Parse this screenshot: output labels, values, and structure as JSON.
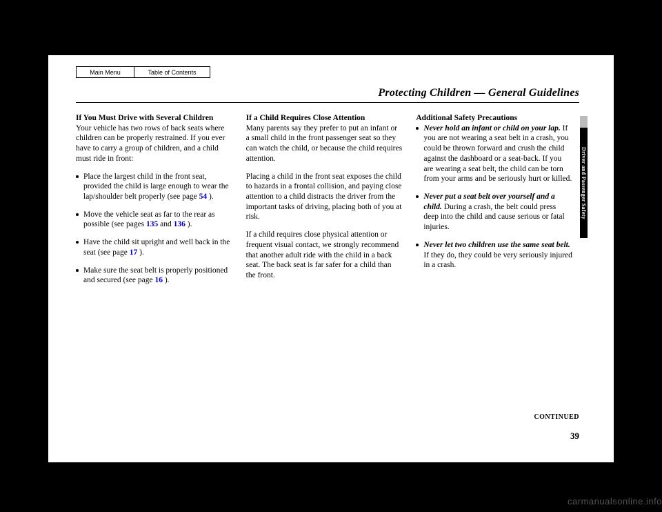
{
  "nav": {
    "main_menu": "Main Menu",
    "toc": "Table of Contents"
  },
  "heading": "Protecting Children — General Guidelines",
  "side_tab": "Driver and Passenger Safety",
  "col1": {
    "h1": "If You Must Drive with Several Children",
    "p1": "Your vehicle has two rows of back seats where children can be properly restrained. If you ever have to carry a group of children, and a child must ride in front:",
    "b1a": "Place the largest child in the front seat, provided the child is large enough to wear the lap/shoulder belt properly (see page ",
    "b1_link": "54",
    "b1b": " ).",
    "b2a": "Move the vehicle seat as far to the rear as possible (see pages ",
    "b2_link1": "135",
    "b2_mid": " and ",
    "b2_link2": "136",
    "b2b": " ).",
    "b3a": "Have the child sit upright and well back in the seat (see page ",
    "b3_link": "17",
    "b3b": " ).",
    "b4a": "Make sure the seat belt is properly positioned and secured (see page ",
    "b4_link": "16",
    "b4b": " )."
  },
  "col2": {
    "h1": "If a Child Requires Close Attention",
    "p1": "Many parents say they prefer to put an infant or a small child in the front passenger seat so they can watch the child, or because the child requires attention.",
    "p2": "Placing a child in the front seat exposes the child to hazards in a frontal collision, and paying close attention to a child distracts the driver from the important tasks of driving, placing both of you at risk.",
    "p3": "If a child requires close physical attention or frequent visual contact, we strongly recommend that another adult ride with the child in a back seat. The back seat is far safer for a child than the front."
  },
  "col3": {
    "h1": "Additional Safety Precautions",
    "b1_head": "Never hold an infant or child on your lap.",
    "b1_body": " If you are not wearing a seat belt in a crash, you could be thrown forward and crush the child against the dashboard or a seat-back. If you are wearing a seat belt, the child can be torn from your arms and be seriously hurt or killed.",
    "b2_head": "Never put a seat belt over yourself and a child.",
    "b2_body": " During a crash, the belt could press deep into the child and cause serious or fatal injuries.",
    "b3_head": "Never let two children use the same seat belt.",
    "b3_body": " If they do, they could be very seriously injured in a crash."
  },
  "continued": "CONTINUED",
  "pagenum": "39",
  "watermark": "carmanualsonline.info"
}
